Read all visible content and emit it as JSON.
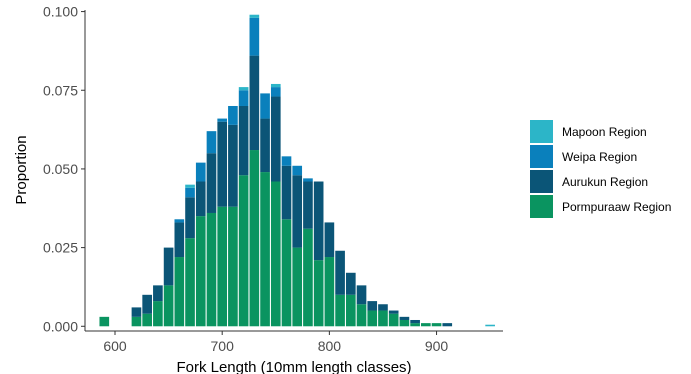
{
  "chart_data": {
    "type": "bar",
    "stacked": true,
    "xlabel": "Fork Length (10mm length classes)",
    "ylabel": "Proportion",
    "xlim": [
      572,
      962
    ],
    "ylim": [
      -0.0015,
      0.1005
    ],
    "xticks": [
      600,
      700,
      800,
      900
    ],
    "xtick_labels": [
      "600",
      "700",
      "800",
      "900"
    ],
    "yticks": [
      0,
      0.025,
      0.05,
      0.075,
      0.1
    ],
    "ytick_labels": [
      "0.000",
      "0.025",
      "0.050",
      "0.075",
      "0.100"
    ],
    "grid": false,
    "legend_position": "right",
    "x": [
      590,
      620,
      630,
      640,
      650,
      660,
      670,
      680,
      690,
      700,
      710,
      720,
      730,
      740,
      750,
      760,
      770,
      780,
      790,
      800,
      810,
      820,
      830,
      840,
      850,
      860,
      870,
      880,
      890,
      900,
      910,
      950
    ],
    "series": [
      {
        "name": "Pormpuraaw Region",
        "color": "#0a9460",
        "values": [
          0.003,
          0.003,
          0.004,
          0.008,
          0.013,
          0.022,
          0.028,
          0.035,
          0.036,
          0.038,
          0.038,
          0.048,
          0.056,
          0.049,
          0.046,
          0.034,
          0.025,
          0.031,
          0.021,
          0.022,
          0.01,
          0.01,
          0.007,
          0.005,
          0.005,
          0.004,
          0.002,
          0.001,
          0.001,
          0.001,
          0.0,
          0.0
        ]
      },
      {
        "name": "Aurukun Region",
        "color": "#0b5577",
        "values": [
          0.0,
          0.003,
          0.006,
          0.005,
          0.012,
          0.011,
          0.013,
          0.011,
          0.019,
          0.027,
          0.026,
          0.022,
          0.03,
          0.017,
          0.027,
          0.017,
          0.023,
          0.015,
          0.025,
          0.011,
          0.014,
          0.007,
          0.006,
          0.003,
          0.002,
          0.001,
          0.001,
          0.001,
          0.0,
          0.0,
          0.001,
          0.0
        ]
      },
      {
        "name": "Weipa Region",
        "color": "#0a80bc",
        "values": [
          0.0,
          0.0,
          0.0,
          0.0,
          0.0,
          0.001,
          0.003,
          0.006,
          0.007,
          0.001,
          0.006,
          0.005,
          0.012,
          0.008,
          0.003,
          0.003,
          0.003,
          0.001,
          0.0,
          0.0,
          0.0,
          0.0,
          0.0,
          0.0,
          0.0,
          0.0,
          0.0,
          0.0,
          0.0,
          0.0,
          0.0,
          0.0
        ]
      },
      {
        "name": "Mapoon Region",
        "color": "#2cb5c8",
        "values": [
          0.0,
          0.0,
          0.0,
          0.0,
          0.0,
          0.0,
          0.001,
          0.0,
          0.0,
          0.0,
          0.0,
          0.001,
          0.001,
          0.0,
          0.001,
          0.0,
          0.0,
          0.0,
          0.0,
          0.0,
          0.0,
          0.0,
          0.0,
          0.0,
          0.0,
          0.0,
          0.0,
          0.0,
          0.0,
          0.0,
          0.0,
          0.0005
        ]
      }
    ],
    "legend_order": [
      "Mapoon Region",
      "Weipa Region",
      "Aurukun Region",
      "Pormpuraaw Region"
    ]
  }
}
